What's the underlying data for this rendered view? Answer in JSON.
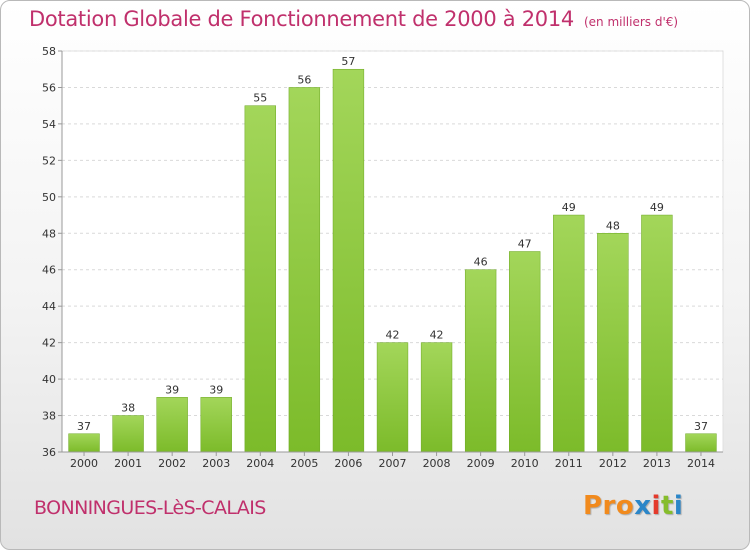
{
  "header": {
    "title": "Dotation Globale de Fonctionnement de 2000 à 2014",
    "unit": "(en milliers d'€)"
  },
  "footer": {
    "commune": "BONNINGUES-LèS-CALAIS",
    "logo": {
      "p1": "Pro",
      "p2": "x",
      "p3": "i",
      "p4": "t",
      "p5": "i"
    }
  },
  "chart_data": {
    "type": "bar",
    "title": "Dotation Globale de Fonctionnement de 2000 à 2014",
    "categories": [
      "2000",
      "2001",
      "2002",
      "2003",
      "2004",
      "2005",
      "2006",
      "2007",
      "2008",
      "2009",
      "2010",
      "2011",
      "2012",
      "2013",
      "2014"
    ],
    "values": [
      37,
      38,
      39,
      39,
      55,
      56,
      57,
      42,
      42,
      46,
      47,
      49,
      48,
      49,
      37
    ],
    "ylim": [
      36,
      58
    ],
    "yticks": [
      36,
      38,
      40,
      42,
      44,
      46,
      48,
      50,
      52,
      54,
      56,
      58
    ],
    "grid": true,
    "bar_color": "#7cbb2a",
    "bar_color_top": "#a3d65a"
  }
}
